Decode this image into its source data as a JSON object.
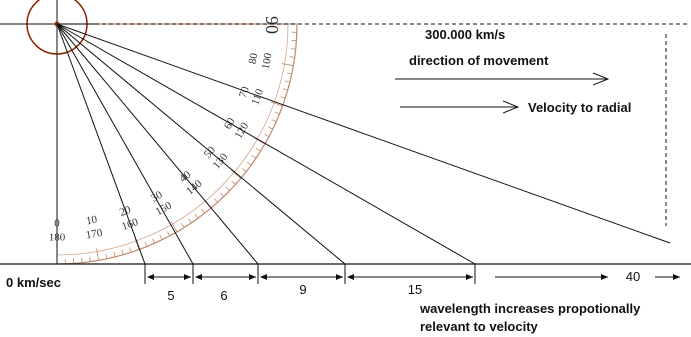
{
  "diagram": {
    "speed_label": "300.000 km/s",
    "direction_label": "direction of movement",
    "velocity_radial_label": "Velocity to radial",
    "zero_label": "0 km/sec",
    "segment_labels": [
      "5",
      "6",
      "9",
      "15",
      "40"
    ],
    "caption_line1": "wavelength increases propotionally",
    "caption_line2": "relevant to velocity",
    "protractor": {
      "top_label": "90",
      "outer_numbers": [
        "0",
        "10",
        "20",
        "30",
        "40",
        "50",
        "60",
        "70",
        "80"
      ],
      "inner_numbers": [
        "180",
        "170",
        "160",
        "150",
        "140",
        "130",
        "120",
        "110",
        "100"
      ]
    },
    "colors": {
      "line": "#111111",
      "protractor": "#a0522d",
      "circle": "#8b2500"
    }
  }
}
